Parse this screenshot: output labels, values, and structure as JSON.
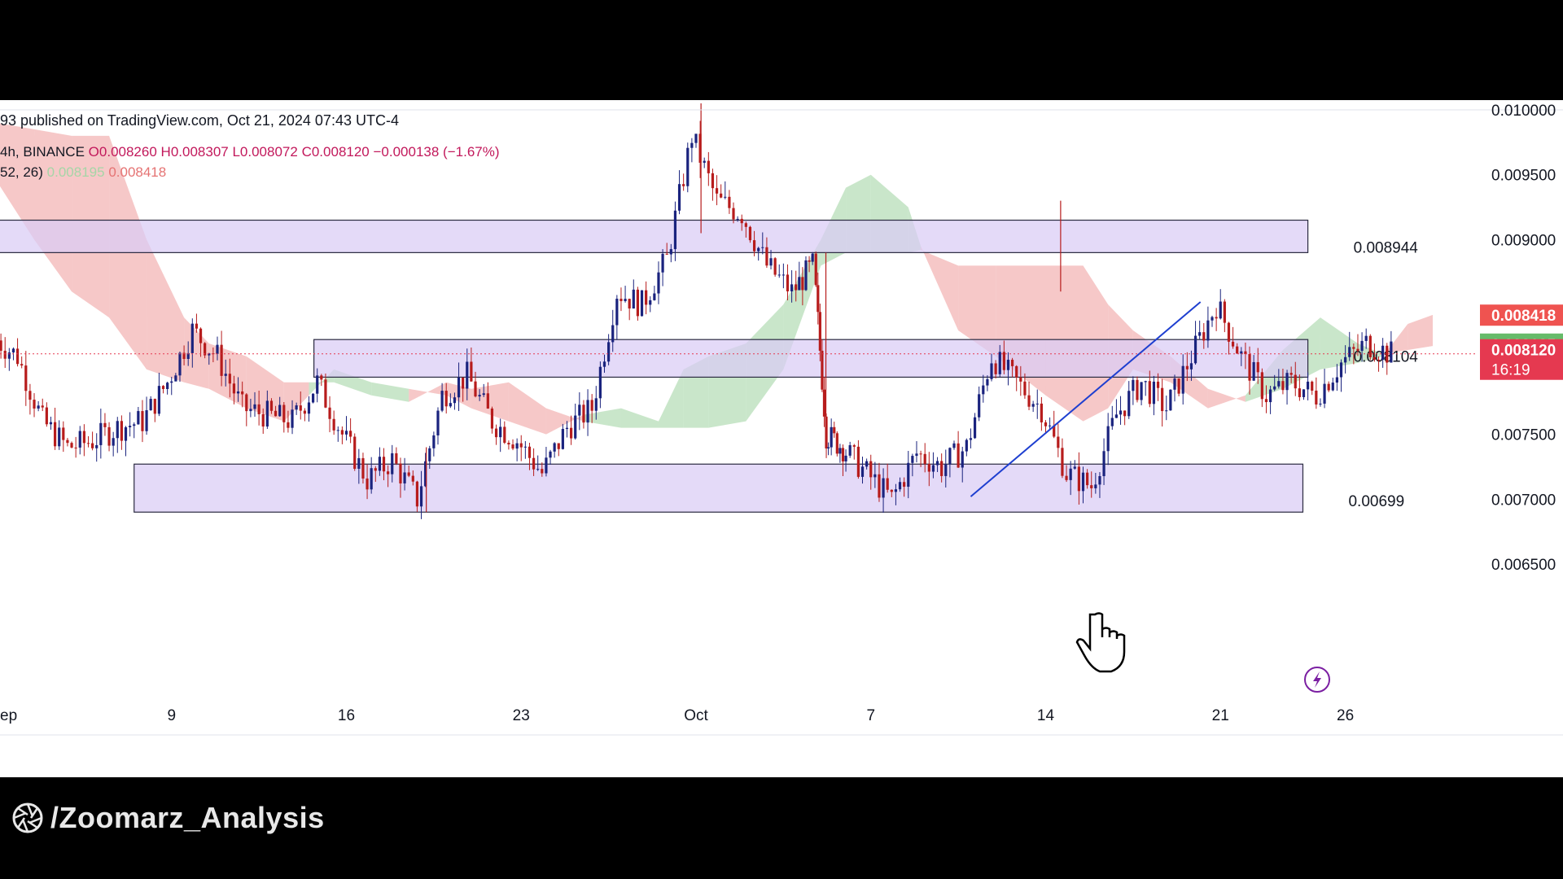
{
  "header": {
    "published": "93 published on TradingView.com, Oct 21, 2024 07:43 UTC-4"
  },
  "ohlc": {
    "symbol": "4h, BINANCE",
    "open": "O0.008260",
    "high": "H0.008307",
    "low": "L0.008072",
    "close": "C0.008120",
    "change": "−0.000138 (−1.67%)"
  },
  "ichimoku": {
    "params": "52, 26)",
    "lead_a": "0.008195",
    "lead_b": "0.008418"
  },
  "footer": {
    "handle": "/Zoomarz_Analysis",
    "icon": "camera-aperture-icon"
  },
  "colors": {
    "candle_up": "#1a237e",
    "candle_down": "#b71c1c",
    "cloud_bull": "#a5d6a7",
    "cloud_bear": "#ef9a9a",
    "zone_fill": "#d9ccf5",
    "trendline": "#1e3fd0",
    "price_tag": "#e53950"
  },
  "chart_data": {
    "type": "candlestick",
    "timeframe": "4h",
    "exchange": "BINANCE",
    "ylim": [
      0.0062,
      0.0101
    ],
    "y_ticks": [
      "0.010000",
      "0.009500",
      "0.009000",
      "0.007500",
      "0.007000",
      "0.006500"
    ],
    "y_tick_values": [
      0.01,
      0.0095,
      0.009,
      0.0075,
      0.007,
      0.0065
    ],
    "x_ticks": [
      "ep",
      "9",
      "16",
      "23",
      "Oct",
      "7",
      "14",
      "21",
      "26"
    ],
    "x_tick_days": [
      2,
      9,
      16,
      23,
      30,
      37,
      44,
      51,
      56
    ],
    "xlim_days": [
      2,
      59.5
    ],
    "zones": [
      {
        "label": "0.008944",
        "value": 0.008944,
        "low": 0.0089,
        "high": 0.00915,
        "start_day": 2,
        "end_day": 54.5
      },
      {
        "label": "0.008104",
        "value": 0.008104,
        "low": 0.00794,
        "high": 0.00823,
        "start_day": 14.7,
        "end_day": 54.5
      },
      {
        "label": "0.00699",
        "value": 0.00699,
        "low": 0.0069,
        "high": 0.00727,
        "start_day": 7.5,
        "end_day": 54.3
      }
    ],
    "price_labels": [
      {
        "label": "0.008418",
        "value": 0.008418,
        "color": "#ef5350"
      },
      {
        "label": "0.008195",
        "value": 0.008195,
        "color": "#66bb6a"
      },
      {
        "label": "0.008120",
        "sublabel": "16:19",
        "value": 0.00812,
        "color": "#e53950"
      }
    ],
    "trendline": {
      "from": [
        41.0,
        0.00702
      ],
      "to": [
        50.2,
        0.00852
      ]
    },
    "ohlc_samples": [
      {
        "day": 2.0,
        "close": 0.00825
      },
      {
        "day": 3.0,
        "close": 0.0081
      },
      {
        "day": 4.0,
        "close": 0.0076
      },
      {
        "day": 5.0,
        "close": 0.0074
      },
      {
        "day": 6.0,
        "close": 0.00745
      },
      {
        "day": 7.0,
        "close": 0.00755
      },
      {
        "day": 8.0,
        "close": 0.0076
      },
      {
        "day": 9.0,
        "close": 0.0079
      },
      {
        "day": 10.0,
        "close": 0.0083
      },
      {
        "day": 11.0,
        "close": 0.0081
      },
      {
        "day": 12.0,
        "close": 0.0077
      },
      {
        "day": 13.0,
        "close": 0.00765
      },
      {
        "day": 14.0,
        "close": 0.0076
      },
      {
        "day": 15.0,
        "close": 0.0079
      },
      {
        "day": 16.0,
        "close": 0.0075
      },
      {
        "day": 17.0,
        "close": 0.00715
      },
      {
        "day": 18.0,
        "close": 0.0073
      },
      {
        "day": 19.0,
        "close": 0.007
      },
      {
        "day": 20.0,
        "close": 0.0078
      },
      {
        "day": 21.0,
        "close": 0.00795
      },
      {
        "day": 22.0,
        "close": 0.0076
      },
      {
        "day": 23.0,
        "close": 0.00745
      },
      {
        "day": 24.0,
        "close": 0.0072
      },
      {
        "day": 25.0,
        "close": 0.00755
      },
      {
        "day": 26.0,
        "close": 0.0077
      },
      {
        "day": 27.0,
        "close": 0.0086
      },
      {
        "day": 28.0,
        "close": 0.0085
      },
      {
        "day": 29.0,
        "close": 0.00885
      },
      {
        "day": 30.0,
        "close": 0.0098
      },
      {
        "day": 31.0,
        "close": 0.0093
      },
      {
        "day": 32.0,
        "close": 0.0092
      },
      {
        "day": 33.0,
        "close": 0.0088
      },
      {
        "day": 34.0,
        "close": 0.0086
      },
      {
        "day": 34.8,
        "close": 0.0088
      },
      {
        "day": 35.3,
        "close": 0.0075
      },
      {
        "day": 36.0,
        "close": 0.0074
      },
      {
        "day": 37.0,
        "close": 0.0072
      },
      {
        "day": 38.0,
        "close": 0.007
      },
      {
        "day": 39.0,
        "close": 0.00735
      },
      {
        "day": 40.0,
        "close": 0.00725
      },
      {
        "day": 41.0,
        "close": 0.0074
      },
      {
        "day": 42.0,
        "close": 0.0081
      },
      {
        "day": 43.0,
        "close": 0.0079
      },
      {
        "day": 44.0,
        "close": 0.0077
      },
      {
        "day": 45.0,
        "close": 0.0072
      },
      {
        "day": 46.0,
        "close": 0.0071
      },
      {
        "day": 47.0,
        "close": 0.00765
      },
      {
        "day": 48.0,
        "close": 0.0079
      },
      {
        "day": 49.0,
        "close": 0.0077
      },
      {
        "day": 50.0,
        "close": 0.0081
      },
      {
        "day": 51.0,
        "close": 0.0085
      },
      {
        "day": 52.0,
        "close": 0.0081
      },
      {
        "day": 53.0,
        "close": 0.0078
      },
      {
        "day": 54.0,
        "close": 0.0079
      },
      {
        "day": 55.0,
        "close": 0.0078
      },
      {
        "day": 56.0,
        "close": 0.00805
      },
      {
        "day": 57.0,
        "close": 0.0082
      },
      {
        "day": 58.0,
        "close": 0.00812
      }
    ],
    "cloud": [
      {
        "day": 2.0,
        "a": 0.00945,
        "b": 0.0099
      },
      {
        "day": 3.5,
        "a": 0.009,
        "b": 0.00985
      },
      {
        "day": 5.0,
        "a": 0.0086,
        "b": 0.0098
      },
      {
        "day": 6.5,
        "a": 0.0084,
        "b": 0.0098
      },
      {
        "day": 8.0,
        "a": 0.008,
        "b": 0.009
      },
      {
        "day": 9.5,
        "a": 0.0079,
        "b": 0.0084
      },
      {
        "day": 10.5,
        "a": 0.00785,
        "b": 0.0082
      },
      {
        "day": 12.0,
        "a": 0.0077,
        "b": 0.0081
      },
      {
        "day": 13.5,
        "a": 0.0076,
        "b": 0.0079
      },
      {
        "day": 14.5,
        "a": 0.0078,
        "b": 0.0079
      },
      {
        "day": 15.5,
        "a": 0.008,
        "b": 0.0079
      },
      {
        "day": 17.0,
        "a": 0.0079,
        "b": 0.0078
      },
      {
        "day": 18.5,
        "a": 0.00785,
        "b": 0.00775
      },
      {
        "day": 20.0,
        "a": 0.0078,
        "b": 0.0079
      },
      {
        "day": 21.0,
        "a": 0.0077,
        "b": 0.00785
      },
      {
        "day": 22.5,
        "a": 0.0076,
        "b": 0.0079
      },
      {
        "day": 24.0,
        "a": 0.0075,
        "b": 0.0077
      },
      {
        "day": 25.5,
        "a": 0.00765,
        "b": 0.0076
      },
      {
        "day": 27.0,
        "a": 0.0077,
        "b": 0.00755
      },
      {
        "day": 28.5,
        "a": 0.0076,
        "b": 0.00755
      },
      {
        "day": 29.5,
        "a": 0.008,
        "b": 0.00755
      },
      {
        "day": 30.5,
        "a": 0.0081,
        "b": 0.00755
      },
      {
        "day": 32.0,
        "a": 0.0082,
        "b": 0.0076
      },
      {
        "day": 33.5,
        "a": 0.0085,
        "b": 0.008
      },
      {
        "day": 35.0,
        "a": 0.009,
        "b": 0.0088
      },
      {
        "day": 36.0,
        "a": 0.0094,
        "b": 0.0089
      },
      {
        "day": 37.0,
        "a": 0.0095,
        "b": 0.0089
      },
      {
        "day": 38.5,
        "a": 0.00925,
        "b": 0.0089
      },
      {
        "day": 39.0,
        "a": 0.00895,
        "b": 0.00892
      },
      {
        "day": 40.5,
        "a": 0.0083,
        "b": 0.0088
      },
      {
        "day": 42.0,
        "a": 0.0081,
        "b": 0.0088
      },
      {
        "day": 44.0,
        "a": 0.0078,
        "b": 0.0088
      },
      {
        "day": 45.5,
        "a": 0.0076,
        "b": 0.0088
      },
      {
        "day": 46.5,
        "a": 0.0077,
        "b": 0.0085
      },
      {
        "day": 47.5,
        "a": 0.008,
        "b": 0.0083
      },
      {
        "day": 49.0,
        "a": 0.0079,
        "b": 0.0081
      },
      {
        "day": 50.5,
        "a": 0.0077,
        "b": 0.00785
      },
      {
        "day": 52.0,
        "a": 0.0078,
        "b": 0.00775
      },
      {
        "day": 53.5,
        "a": 0.00815,
        "b": 0.00785
      },
      {
        "day": 55.0,
        "a": 0.0084,
        "b": 0.008
      },
      {
        "day": 56.5,
        "a": 0.0082,
        "b": 0.00805
      },
      {
        "day": 57.5,
        "a": 0.00812,
        "b": 0.0081
      },
      {
        "day": 58.5,
        "a": 0.00815,
        "b": 0.00835
      },
      {
        "day": 59.5,
        "a": 0.00818,
        "b": 0.00842
      }
    ]
  }
}
